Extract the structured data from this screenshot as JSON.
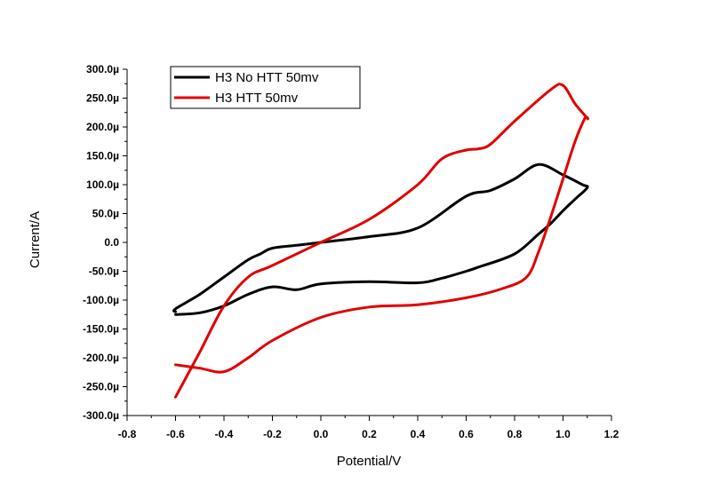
{
  "chart_data": {
    "type": "line",
    "xlabel": "Potential/V",
    "ylabel": "Current/A",
    "xlim": [
      -0.8,
      1.2
    ],
    "ylim": [
      -300,
      300
    ],
    "y_unit_suffix": "µ",
    "x_ticks": [
      "-0.8",
      "-0.6",
      "-0.4",
      "-0.2",
      "0.0",
      "0.2",
      "0.4",
      "0.6",
      "0.8",
      "1.0",
      "1.2"
    ],
    "y_ticks": [
      "300.0µ",
      "250.0µ",
      "200.0µ",
      "150.0µ",
      "100.0µ",
      "50.0µ",
      "0.0",
      "-50.0µ",
      "-100.0µ",
      "-150.0µ",
      "-200.0µ",
      "-250.0µ",
      "-300.0µ"
    ],
    "grid": false,
    "legend_position": "top-left",
    "series": [
      {
        "name": "H3 No HTT 50mv",
        "color": "#000000",
        "x": [
          -0.6,
          -0.5,
          -0.4,
          -0.3,
          -0.2,
          -0.1,
          0.0,
          0.2,
          0.4,
          0.5,
          0.6,
          0.65,
          0.8,
          0.9,
          0.95,
          1.0,
          1.05,
          1.1,
          1.08,
          1.0,
          0.9,
          0.8,
          0.7,
          0.6,
          0.4,
          0.2,
          0.0,
          -0.1,
          -0.2,
          -0.25,
          -0.3,
          -0.4,
          -0.5,
          -0.6,
          -0.6
        ],
        "y": [
          -125,
          -122,
          -110,
          -90,
          -77,
          -82,
          -72,
          -68,
          -70,
          -62,
          -50,
          -43,
          -20,
          15,
          33,
          55,
          75,
          95,
          100,
          117,
          135,
          110,
          90,
          80,
          25,
          10,
          0,
          -5,
          -10,
          -20,
          -30,
          -60,
          -90,
          -115,
          -120
        ]
      },
      {
        "name": "H3 HTT 50mv",
        "color": "#e00000",
        "x": [
          -0.6,
          -0.5,
          -0.4,
          -0.3,
          -0.2,
          0.0,
          0.2,
          0.4,
          0.6,
          0.75,
          0.85,
          0.9,
          0.95,
          1.0,
          1.05,
          1.09,
          1.1,
          1.05,
          1.0,
          0.95,
          0.8,
          0.7,
          0.65,
          0.6,
          0.5,
          0.4,
          0.2,
          0.0,
          -0.2,
          -0.3,
          -0.4,
          -0.5,
          -0.6
        ],
        "y": [
          -212,
          -218,
          -224,
          -200,
          -170,
          -130,
          -112,
          -108,
          -96,
          -80,
          -60,
          -15,
          45,
          110,
          175,
          215,
          215,
          240,
          272,
          265,
          210,
          170,
          162,
          160,
          145,
          100,
          40,
          0,
          -40,
          -60,
          -110,
          -190,
          -268
        ]
      }
    ]
  }
}
